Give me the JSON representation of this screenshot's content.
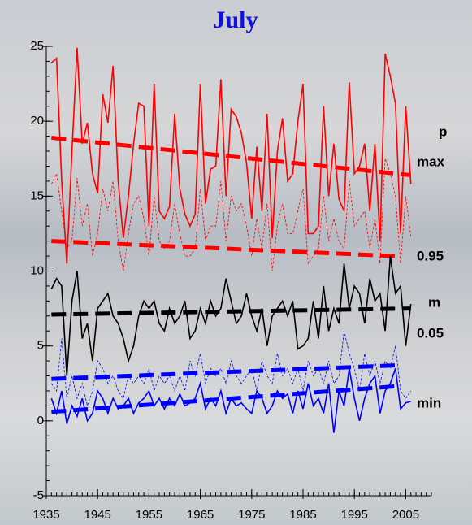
{
  "chart_data": {
    "type": "line",
    "title": "July",
    "legend_title": "p",
    "x": [
      1936,
      1937,
      1938,
      1939,
      1940,
      1941,
      1942,
      1943,
      1944,
      1945,
      1946,
      1947,
      1948,
      1949,
      1950,
      1951,
      1952,
      1953,
      1954,
      1955,
      1956,
      1957,
      1958,
      1959,
      1960,
      1961,
      1962,
      1963,
      1964,
      1965,
      1966,
      1967,
      1968,
      1969,
      1970,
      1971,
      1972,
      1973,
      1974,
      1975,
      1976,
      1977,
      1978,
      1979,
      1980,
      1981,
      1982,
      1983,
      1984,
      1985,
      1986,
      1987,
      1988,
      1989,
      1990,
      1991,
      1992,
      1993,
      1994,
      1995,
      1996,
      1997,
      1998,
      1999,
      2000,
      2001,
      2002,
      2003,
      2004,
      2005,
      2006
    ],
    "series": [
      {
        "name": "max",
        "color": "#ff0000",
        "dashed": false,
        "values": [
          23.9,
          24.2,
          16,
          10.5,
          18,
          24.9,
          18.5,
          19.9,
          16.5,
          15.2,
          21.8,
          19.9,
          23.7,
          16,
          12.2,
          15,
          18.5,
          21.2,
          21,
          13,
          22.5,
          14,
          13.5,
          14.3,
          20.5,
          15.5,
          13.8,
          13,
          13.8,
          22.5,
          14.5,
          16.8,
          17,
          22.8,
          15,
          20.8,
          20.3,
          19.2,
          17.2,
          13.5,
          18.3,
          14,
          20.5,
          12.2,
          18,
          20.2,
          16,
          16.5,
          20,
          22.5,
          12.5,
          12.5,
          13,
          21,
          15,
          18.5,
          14.8,
          14,
          22.6,
          16.5,
          17,
          18.5,
          14,
          18.5,
          12,
          24.5,
          23,
          21.2,
          12.5,
          21,
          15.8
        ],
        "trend": {
          "x": [
            1936,
            2006
          ],
          "values": [
            18.9,
            16.4
          ]
        }
      },
      {
        "name": "0.95",
        "color": "#ff0000",
        "dashed": true,
        "values": [
          15.8,
          16.5,
          14,
          11.5,
          12,
          16.2,
          13,
          14.5,
          11,
          12.5,
          15.5,
          14,
          16,
          12,
          10,
          12.5,
          14.5,
          15,
          13.5,
          11,
          15,
          12,
          11.5,
          12,
          14.5,
          12.5,
          11,
          11,
          11.5,
          15.5,
          12,
          13,
          13,
          16,
          12,
          15,
          14,
          14.5,
          13,
          11,
          13.5,
          11.5,
          14.5,
          10,
          13,
          14.5,
          12.5,
          12.5,
          14,
          15.5,
          10.5,
          11,
          11.5,
          15,
          12,
          13.5,
          12,
          11.5,
          16,
          13,
          13.5,
          14,
          11.5,
          13.5,
          10.5,
          17.5,
          16.5,
          15,
          10.5,
          15,
          12.3
        ],
        "trend": {
          "x": [
            1936,
            2003
          ],
          "values": [
            12,
            11
          ]
        }
      },
      {
        "name": "m",
        "color": "#000000",
        "dashed": false,
        "values": [
          8.8,
          9.5,
          9,
          3,
          8,
          10,
          5.5,
          6.5,
          4,
          7.5,
          8,
          8.5,
          7,
          6.5,
          5.5,
          4,
          5,
          7,
          8,
          7.5,
          8,
          6.5,
          6,
          7.5,
          6.5,
          7,
          8,
          5.5,
          6,
          7.5,
          6.5,
          8,
          7,
          7.5,
          9.5,
          8,
          6.5,
          7,
          8.5,
          7,
          6,
          7.5,
          5,
          7,
          7.5,
          8,
          7,
          8,
          4.8,
          5,
          5.5,
          8,
          5.5,
          9,
          6,
          7.5,
          6.5,
          10.5,
          7.5,
          9,
          8.5,
          6.5,
          9.5,
          8,
          8.5,
          6,
          11,
          8.5,
          9,
          5,
          7.8
        ],
        "trend": {
          "x": [
            1936,
            2006
          ],
          "values": [
            7.1,
            7.5
          ]
        }
      },
      {
        "name": "0.05",
        "color": "#0000ff",
        "dashed": true,
        "values": [
          2.5,
          2,
          5.5,
          1.5,
          3,
          1.5,
          2.5,
          1,
          2,
          4,
          3.5,
          2.5,
          3,
          2,
          1.5,
          3,
          2.5,
          3,
          2.5,
          3.5,
          2,
          3,
          2.5,
          3,
          2,
          3,
          2,
          4,
          3,
          4.5,
          2.5,
          3.5,
          3,
          3.5,
          2.5,
          4,
          3,
          2.5,
          3,
          3.5,
          2,
          4,
          3,
          2.5,
          4.5,
          3,
          3.5,
          2.5,
          3.5,
          2,
          4,
          3,
          3.5,
          2.5,
          4,
          2.5,
          3,
          6,
          4.5,
          3.5,
          2,
          4.5,
          3,
          4,
          2.5,
          4,
          3.5,
          5,
          2,
          1.5,
          2
        ],
        "trend": {
          "x": [
            1936,
            2003
          ],
          "values": [
            2.8,
            3.7
          ]
        }
      },
      {
        "name": "min",
        "color": "#0000ff",
        "dashed": false,
        "values": [
          1.5,
          0.5,
          2,
          -0.2,
          1,
          0.3,
          1.5,
          0,
          0.5,
          2,
          1.5,
          0.5,
          1.5,
          0.8,
          1,
          1.5,
          0.5,
          1.2,
          1.5,
          2,
          1,
          1.5,
          0.8,
          1.5,
          1,
          1.8,
          1,
          1.2,
          1.5,
          2.5,
          0.8,
          1.5,
          1,
          2,
          0.5,
          1.5,
          1,
          1.2,
          0.8,
          0.5,
          2,
          1.5,
          0.5,
          1,
          2,
          1.5,
          1.8,
          0.5,
          2,
          0.8,
          2.5,
          1,
          1.5,
          0.5,
          2.5,
          -0.8,
          2,
          1,
          3.5,
          1.5,
          0,
          1.5,
          2.5,
          3,
          0.5,
          2,
          2.5,
          3.5,
          0.8,
          1.2,
          1.3
        ],
        "trend": {
          "x": [
            1936,
            2003
          ],
          "values": [
            0.6,
            2.3
          ]
        }
      }
    ],
    "xlim": [
      1935,
      2010
    ],
    "xticks": [
      1935,
      1945,
      1955,
      1965,
      1975,
      1985,
      1995,
      2005
    ],
    "ylim": [
      -5,
      25
    ],
    "yticks": [
      -5,
      0,
      5,
      10,
      15,
      20,
      25
    ],
    "minor_ticks": true
  }
}
